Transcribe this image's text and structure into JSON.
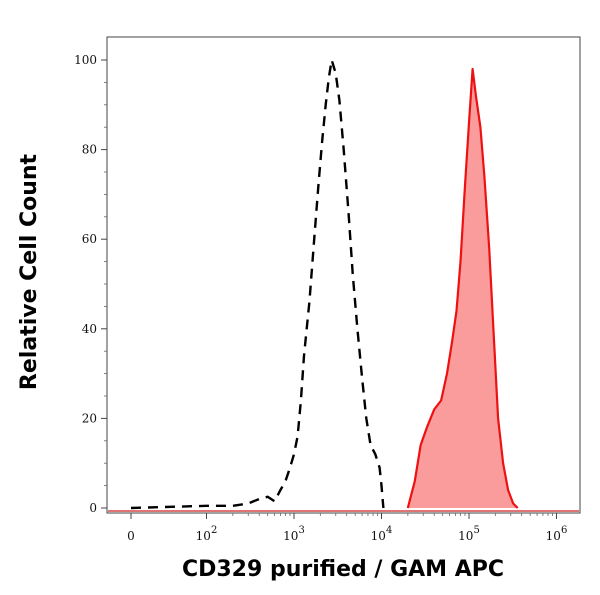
{
  "chart_data": {
    "type": "area",
    "title": "",
    "xlabel": "CD329 purified / GAM APC",
    "ylabel": "Relative Cell Count",
    "x_scale": "biexponential",
    "xlim": [
      -50,
      1000000
    ],
    "ylim": [
      0,
      100
    ],
    "x_ticks": [
      {
        "value": 0,
        "base": "0",
        "exp": ""
      },
      {
        "value": 100,
        "base": "10",
        "exp": "2"
      },
      {
        "value": 1000,
        "base": "10",
        "exp": "3"
      },
      {
        "value": 10000,
        "base": "10",
        "exp": "4"
      },
      {
        "value": 100000,
        "base": "10",
        "exp": "5"
      },
      {
        "value": 1000000,
        "base": "10",
        "exp": "6"
      }
    ],
    "y_ticks": [
      0,
      20,
      40,
      60,
      80,
      100
    ],
    "grid": false,
    "legend": "none",
    "series": [
      {
        "style": "dashed-outline",
        "color": "#000000",
        "points": [
          [
            0,
            0
          ],
          [
            100,
            0.5
          ],
          [
            200,
            0.5
          ],
          [
            300,
            1
          ],
          [
            400,
            2
          ],
          [
            500,
            2.5
          ],
          [
            600,
            1.5
          ],
          [
            700,
            4
          ],
          [
            800,
            6
          ],
          [
            900,
            9
          ],
          [
            1000,
            12
          ],
          [
            1100,
            16
          ],
          [
            1200,
            24
          ],
          [
            1300,
            34
          ],
          [
            1500,
            46
          ],
          [
            1700,
            60
          ],
          [
            1900,
            72
          ],
          [
            2100,
            82
          ],
          [
            2300,
            90
          ],
          [
            2500,
            96
          ],
          [
            2700,
            100
          ],
          [
            3000,
            97
          ],
          [
            3300,
            91
          ],
          [
            3700,
            80
          ],
          [
            4200,
            66
          ],
          [
            4700,
            52
          ],
          [
            5300,
            40
          ],
          [
            6000,
            29
          ],
          [
            6700,
            20
          ],
          [
            7500,
            14
          ],
          [
            8500,
            12
          ],
          [
            9500,
            9
          ],
          [
            10000,
            5
          ],
          [
            10300,
            2
          ],
          [
            10500,
            0
          ]
        ]
      },
      {
        "style": "filled",
        "color": "#ee1111",
        "fill": "#fa9c9c",
        "points": [
          [
            20000,
            0
          ],
          [
            24000,
            6
          ],
          [
            28000,
            14
          ],
          [
            33000,
            18
          ],
          [
            40000,
            22
          ],
          [
            48000,
            24
          ],
          [
            56000,
            30
          ],
          [
            64000,
            37
          ],
          [
            72000,
            44
          ],
          [
            80000,
            55
          ],
          [
            90000,
            72
          ],
          [
            100000,
            86
          ],
          [
            110000,
            98
          ],
          [
            120000,
            92
          ],
          [
            135000,
            85
          ],
          [
            150000,
            74
          ],
          [
            170000,
            58
          ],
          [
            190000,
            40
          ],
          [
            215000,
            20
          ],
          [
            245000,
            10
          ],
          [
            280000,
            4
          ],
          [
            320000,
            1
          ],
          [
            360000,
            0
          ]
        ]
      }
    ]
  }
}
